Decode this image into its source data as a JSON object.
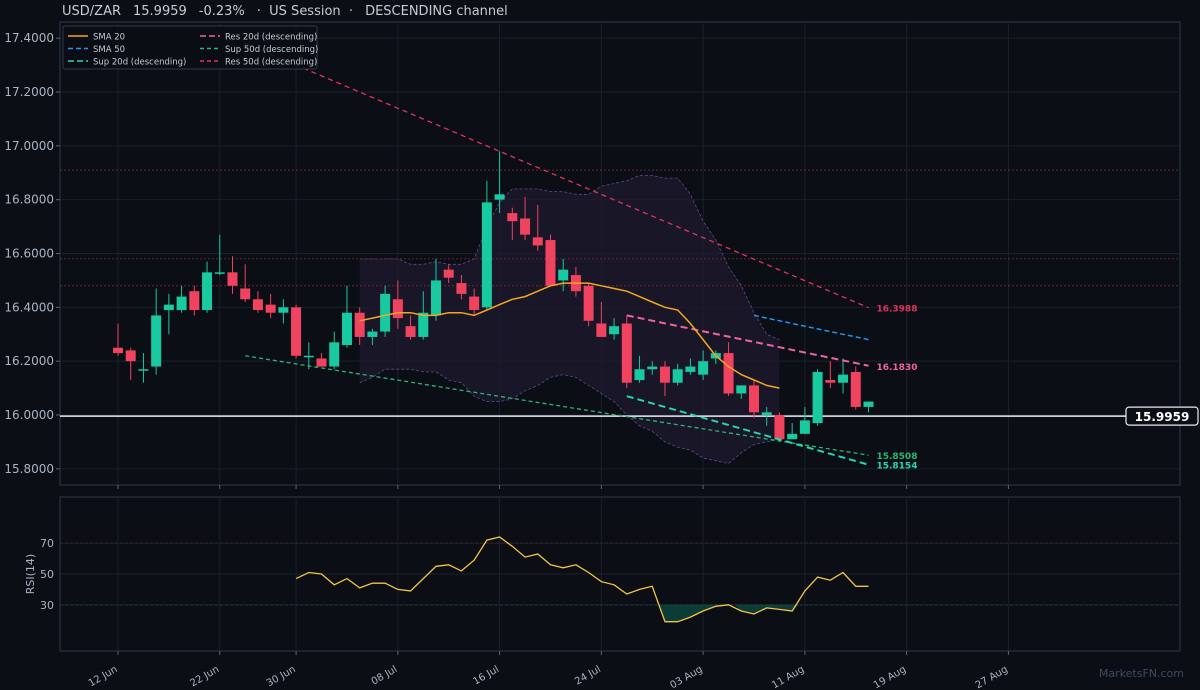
{
  "header": {
    "symbol": "USD/ZAR",
    "price": "15.9959",
    "change": "-0.23%",
    "session": "·  US Session  ·",
    "channel": "DESCENDING channel"
  },
  "watermark": "MarketsFN.com",
  "colors": {
    "bull": "#19c9a0",
    "bear": "#f0435f",
    "sma20": "#f5a623",
    "sma50": "#2196f3",
    "sup20": "#25d6b0",
    "sup50": "#2bb673",
    "res20": "#f062a0",
    "res50": "#e0345a",
    "rsi": "#f4c542",
    "grid": "#1a212c",
    "bg": "#0b0e14"
  },
  "chart_data": {
    "type": "candlestick",
    "x_ticks": [
      "12 Jun",
      "22 Jun",
      "30 Jun",
      "08 Jul",
      "16 Jul",
      "24 Jul",
      "03 Aug",
      "11 Aug",
      "19 Aug",
      "27 Aug"
    ],
    "x_tick_index": [
      0,
      8,
      14,
      22,
      30,
      38,
      46,
      54,
      62,
      70
    ],
    "ylim": [
      15.74,
      17.46
    ],
    "y_ticks": [
      "15.8000",
      "16.0000",
      "16.2000",
      "16.4000",
      "16.6000",
      "16.8000",
      "17.0000",
      "17.2000",
      "17.4000"
    ],
    "candles": [
      [
        16.25,
        16.34,
        16.22,
        16.23
      ],
      [
        16.24,
        16.25,
        16.13,
        16.2
      ],
      [
        16.17,
        16.23,
        16.12,
        16.17
      ],
      [
        16.18,
        16.47,
        16.15,
        16.37
      ],
      [
        16.39,
        16.45,
        16.3,
        16.41
      ],
      [
        16.39,
        16.48,
        16.38,
        16.44
      ],
      [
        16.46,
        16.48,
        16.37,
        16.39
      ],
      [
        16.39,
        16.57,
        16.38,
        16.53
      ],
      [
        16.53,
        16.67,
        16.52,
        16.53
      ],
      [
        16.53,
        16.59,
        16.45,
        16.48
      ],
      [
        16.47,
        16.56,
        16.42,
        16.43
      ],
      [
        16.43,
        16.46,
        16.38,
        16.39
      ],
      [
        16.41,
        16.45,
        16.36,
        16.38
      ],
      [
        16.38,
        16.43,
        16.34,
        16.4
      ],
      [
        16.4,
        16.41,
        16.21,
        16.22
      ],
      [
        16.22,
        16.27,
        16.17,
        16.22
      ],
      [
        16.21,
        16.23,
        16.18,
        16.18
      ],
      [
        16.18,
        16.31,
        16.17,
        16.27
      ],
      [
        16.26,
        16.48,
        16.25,
        16.38
      ],
      [
        16.38,
        16.4,
        16.26,
        16.29
      ],
      [
        16.29,
        16.32,
        16.26,
        16.31
      ],
      [
        16.31,
        16.48,
        16.29,
        16.45
      ],
      [
        16.43,
        16.5,
        16.32,
        16.36
      ],
      [
        16.33,
        16.37,
        16.28,
        16.29
      ],
      [
        16.29,
        16.46,
        16.28,
        16.38
      ],
      [
        16.37,
        16.58,
        16.35,
        16.5
      ],
      [
        16.54,
        16.56,
        16.49,
        16.51
      ],
      [
        16.49,
        16.52,
        16.43,
        16.45
      ],
      [
        16.44,
        16.47,
        16.37,
        16.39
      ],
      [
        16.4,
        16.87,
        16.39,
        16.79
      ],
      [
        16.8,
        16.98,
        16.75,
        16.82
      ],
      [
        16.75,
        16.77,
        16.65,
        16.72
      ],
      [
        16.73,
        16.81,
        16.65,
        16.67
      ],
      [
        16.66,
        16.78,
        16.61,
        16.63
      ],
      [
        16.65,
        16.67,
        16.48,
        16.48
      ],
      [
        16.5,
        16.58,
        16.46,
        16.54
      ],
      [
        16.52,
        16.55,
        16.44,
        16.46
      ],
      [
        16.48,
        16.49,
        16.33,
        16.35
      ],
      [
        16.34,
        16.42,
        16.3,
        16.29
      ],
      [
        16.3,
        16.36,
        16.28,
        16.33
      ],
      [
        16.34,
        16.37,
        16.1,
        16.12
      ],
      [
        16.13,
        16.22,
        16.12,
        16.17
      ],
      [
        16.17,
        16.2,
        16.15,
        16.18
      ],
      [
        16.18,
        16.2,
        16.07,
        16.12
      ],
      [
        16.12,
        16.19,
        16.11,
        16.17
      ],
      [
        16.16,
        16.21,
        16.15,
        16.18
      ],
      [
        16.15,
        16.24,
        16.13,
        16.2
      ],
      [
        16.21,
        16.24,
        16.19,
        16.23
      ],
      [
        16.23,
        16.27,
        16.07,
        16.08
      ],
      [
        16.08,
        16.11,
        16.06,
        16.11
      ],
      [
        16.11,
        16.13,
        15.99,
        16.01
      ],
      [
        16.0,
        16.03,
        15.96,
        16.01
      ],
      [
        16.0,
        16.01,
        15.9,
        15.91
      ],
      [
        15.91,
        15.97,
        15.91,
        15.93
      ],
      [
        15.93,
        16.03,
        15.93,
        15.98
      ],
      [
        15.97,
        16.17,
        15.96,
        16.16
      ],
      [
        16.13,
        16.2,
        16.1,
        16.12
      ],
      [
        16.12,
        16.21,
        16.08,
        16.15
      ],
      [
        16.16,
        16.18,
        16.02,
        16.03
      ],
      [
        16.03,
        16.05,
        16.01,
        16.05
      ]
    ],
    "sma20": {
      "name": "SMA 20",
      "start_index": 19,
      "values": [
        16.35,
        16.36,
        16.37,
        16.38,
        16.38,
        16.37,
        16.37,
        16.38,
        16.38,
        16.37,
        16.39,
        16.41,
        16.43,
        16.44,
        16.46,
        16.48,
        16.49,
        16.49,
        16.49,
        16.48,
        16.47,
        16.46,
        16.44,
        16.42,
        16.4,
        16.39,
        16.34,
        16.28,
        16.22,
        16.18,
        16.15,
        16.13,
        16.11,
        16.1
      ]
    },
    "sma50": {
      "name": "SMA 50",
      "start_index": 50,
      "values": [
        16.37,
        16.36,
        16.35,
        16.34,
        16.33,
        16.32,
        16.31,
        16.3,
        16.29,
        16.28
      ]
    },
    "bollinger": {
      "start_index": 19,
      "upper": [
        16.58,
        16.58,
        16.58,
        16.58,
        16.56,
        16.56,
        16.57,
        16.56,
        16.56,
        16.58,
        16.7,
        16.79,
        16.84,
        16.84,
        16.84,
        16.83,
        16.83,
        16.82,
        16.82,
        16.85,
        16.86,
        16.87,
        16.89,
        16.89,
        16.88,
        16.88,
        16.82,
        16.72,
        16.65,
        16.55,
        16.48,
        16.38,
        16.3,
        16.28
      ],
      "lower": [
        16.12,
        16.14,
        16.17,
        16.17,
        16.17,
        16.16,
        16.16,
        16.13,
        16.12,
        16.07,
        16.05,
        16.05,
        16.06,
        16.09,
        16.11,
        16.14,
        16.15,
        16.14,
        16.11,
        16.08,
        16.05,
        16.0,
        15.96,
        15.94,
        15.9,
        15.88,
        15.87,
        15.84,
        15.83,
        15.82,
        15.86,
        15.89,
        15.9,
        15.91
      ]
    },
    "trendlines": [
      {
        "name": "Res 50d (descending)",
        "x0": 10,
        "y0": 17.38,
        "x1": 59,
        "y1": 16.3988,
        "label": "16.3988"
      },
      {
        "name": "Res 20d (descending)",
        "x0": 40,
        "y0": 16.37,
        "x1": 59,
        "y1": 16.183,
        "label": "16.1830"
      },
      {
        "name": "Sup 50d (descending)",
        "x0": 10,
        "y0": 16.22,
        "x1": 59,
        "y1": 15.8508,
        "label": "15.8508"
      },
      {
        "name": "Sup 20d (descending)",
        "x0": 40,
        "y0": 16.07,
        "x1": 59,
        "y1": 15.8154,
        "label": "15.8154"
      }
    ],
    "horizontal_levels": [
      16.91,
      16.58,
      16.48
    ],
    "last_price": 15.9959,
    "last_price_label": "15.9959",
    "rsi": {
      "ylabel": "RSI(14)",
      "ylim": [
        0,
        100
      ],
      "y_ticks": [
        30,
        50,
        70
      ],
      "overbought": 70,
      "oversold": 30,
      "start_index": 14,
      "values": [
        47,
        51,
        50,
        43,
        47,
        41,
        44,
        44,
        40,
        39,
        47,
        55,
        56,
        52,
        59,
        72,
        74,
        68,
        61,
        63,
        56,
        54,
        56,
        51,
        45,
        43,
        37,
        40,
        42,
        19,
        19,
        22,
        26,
        29,
        30,
        26,
        24,
        28,
        27,
        26,
        39,
        48,
        46,
        51,
        42,
        42
      ]
    },
    "legend": {
      "placement": "top-left",
      "items": [
        {
          "label": "SMA 20",
          "color": "#f5a623",
          "dash": ""
        },
        {
          "label": "Res 20d (descending)",
          "color": "#f062a0",
          "dash": "6,3"
        },
        {
          "label": "SMA 50",
          "color": "#2196f3",
          "dash": "5,3"
        },
        {
          "label": "Sup 50d (descending)",
          "color": "#2bb673",
          "dash": "4,3"
        },
        {
          "label": "Sup 20d (descending)",
          "color": "#25d6b0",
          "dash": "6,3"
        },
        {
          "label": "Res 50d (descending)",
          "color": "#e0345a",
          "dash": "4,3"
        }
      ]
    }
  }
}
